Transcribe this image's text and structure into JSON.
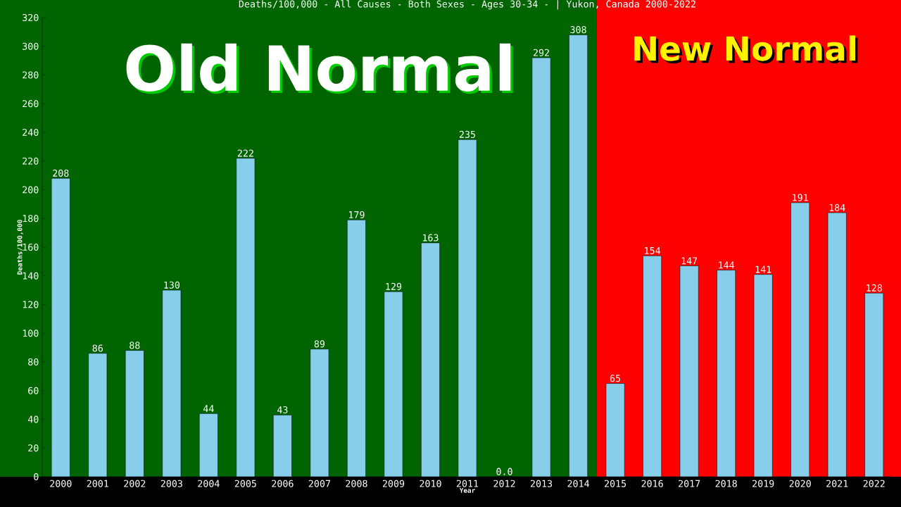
{
  "chart_data": {
    "type": "bar",
    "title": "Deaths/100,000 - All Causes - Both Sexes - Ages 30-34 -  | Yukon, Canada 2000-2022",
    "xlabel": "Year",
    "ylabel": "Deaths/100,000",
    "categories": [
      "2000",
      "2001",
      "2002",
      "2003",
      "2004",
      "2005",
      "2006",
      "2007",
      "2008",
      "2009",
      "2010",
      "2011",
      "2012",
      "2013",
      "2014",
      "2015",
      "2016",
      "2017",
      "2018",
      "2019",
      "2020",
      "2021",
      "2022"
    ],
    "values": [
      208,
      86,
      88,
      130,
      44,
      222,
      43,
      89,
      179,
      129,
      163,
      235,
      0,
      292,
      308,
      65,
      154,
      147,
      144,
      141,
      191,
      184,
      128
    ],
    "value_labels": [
      "208",
      "86",
      "88",
      "130",
      "44",
      "222",
      "43",
      "89",
      "179",
      "129",
      "163",
      "235",
      "0.0",
      "292",
      "308",
      "65",
      "154",
      "147",
      "144",
      "141",
      "191",
      "184",
      "128"
    ],
    "color": "#87ceeb",
    "ylim": [
      0,
      320
    ],
    "yticks": [
      0,
      20,
      40,
      60,
      80,
      100,
      120,
      140,
      160,
      180,
      200,
      220,
      240,
      260,
      280,
      300,
      320
    ],
    "bands": [
      {
        "axis": "x",
        "from": "2000",
        "to": "2014",
        "label": "Old Normal",
        "color": "#006400"
      },
      {
        "axis": "x",
        "from": "2015",
        "to": "2022",
        "label": "New Normal",
        "color": "#ff0000"
      }
    ],
    "grid": false
  }
}
